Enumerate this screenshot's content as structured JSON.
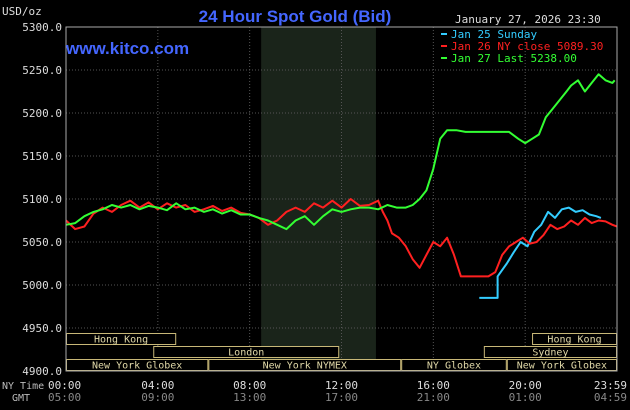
{
  "chart_data": {
    "type": "line",
    "title": "24 Hour Spot Gold (Bid)",
    "unit_label": "USD/oz",
    "website": "www.kitco.com",
    "timestamp": "January 27, 2026 23:30",
    "legend": [
      {
        "label": "Jan 25 Sunday",
        "color": "#33ccff"
      },
      {
        "label": "Jan 26 NY close 5089.30",
        "color": "#ff2020"
      },
      {
        "label": "Jan 27 Last 5238.00",
        "color": "#33ff33"
      }
    ],
    "ylim": [
      4900,
      5300
    ],
    "y_ticks": [
      4900,
      4950,
      5000,
      5050,
      5100,
      5150,
      5200,
      5250,
      5300
    ],
    "y_tick_labels": [
      "4900.0",
      "4950.0",
      "5000.0",
      "5050.0",
      "5100.0",
      "5150.0",
      "5200.0",
      "5250.0",
      "5300.0"
    ],
    "x_domain_hours": [
      0,
      24
    ],
    "x_tick_hours": [
      0,
      4,
      8,
      12,
      16,
      20,
      24
    ],
    "ny_time_label": "NY Time",
    "gmt_label": "GMT",
    "ny_tick_labels": [
      "00:00",
      "04:00",
      "08:00",
      "12:00",
      "16:00",
      "20:00",
      "23:59"
    ],
    "gmt_tick_labels": [
      "05:00",
      "09:00",
      "13:00",
      "17:00",
      "21:00",
      "01:00",
      "04:59"
    ],
    "shaded_hours": [
      8.5,
      13.5
    ],
    "sessions": [
      {
        "label": "Hong Kong",
        "start": 0,
        "end": 4.8,
        "row": 0
      },
      {
        "label": "Hong Kong",
        "start": 20.3,
        "end": 24,
        "row": 0
      },
      {
        "label": "London",
        "start": 3.8,
        "end": 11.9,
        "row": 1
      },
      {
        "label": "Sydney",
        "start": 18.2,
        "end": 24,
        "row": 1
      },
      {
        "label": "New York Globex",
        "start": 0,
        "end": 6.2,
        "row": 2
      },
      {
        "label": "New York NYMEX",
        "start": 6.2,
        "end": 14.6,
        "row": 2
      },
      {
        "label": "NY Globex",
        "start": 14.6,
        "end": 19.2,
        "row": 2
      },
      {
        "label": "New York Globex",
        "start": 19.2,
        "end": 24,
        "row": 2
      }
    ],
    "series": [
      {
        "name": "Jan 25 Sunday",
        "color": "#33ccff",
        "x": [
          18.0,
          18.8,
          18.8,
          19.2,
          19.5,
          19.8,
          20.1,
          20.4,
          20.7,
          21.0,
          21.3,
          21.6,
          21.9,
          22.2,
          22.5,
          22.8,
          23.1,
          23.3
        ],
        "y": [
          4985,
          4985,
          5010,
          5025,
          5038,
          5050,
          5045,
          5062,
          5070,
          5085,
          5078,
          5088,
          5090,
          5085,
          5087,
          5082,
          5080,
          5078
        ]
      },
      {
        "name": "Jan 26 NY close 5089.30",
        "color": "#ff2020",
        "x": [
          0.0,
          0.4,
          0.8,
          1.2,
          1.6,
          2.0,
          2.4,
          2.8,
          3.2,
          3.6,
          4.0,
          4.4,
          4.8,
          5.2,
          5.6,
          6.0,
          6.4,
          6.8,
          7.2,
          7.6,
          8.0,
          8.4,
          8.8,
          9.2,
          9.6,
          10.0,
          10.4,
          10.8,
          11.2,
          11.6,
          12.0,
          12.4,
          12.8,
          13.2,
          13.6,
          13.8,
          14.0,
          14.2,
          14.5,
          14.8,
          15.1,
          15.4,
          15.7,
          16.0,
          16.3,
          16.6,
          16.9,
          17.2,
          17.5,
          17.8,
          18.1,
          18.4,
          18.7,
          19.0,
          19.3,
          19.6,
          19.9,
          20.2,
          20.5,
          20.8,
          21.1,
          21.4,
          21.7,
          22.0,
          22.3,
          22.6,
          22.9,
          23.2,
          23.5,
          23.8,
          24.0
        ],
        "y": [
          5075,
          5065,
          5068,
          5083,
          5090,
          5085,
          5093,
          5098,
          5090,
          5096,
          5088,
          5095,
          5090,
          5093,
          5085,
          5088,
          5092,
          5086,
          5090,
          5084,
          5082,
          5078,
          5070,
          5075,
          5085,
          5090,
          5085,
          5095,
          5090,
          5098,
          5090,
          5100,
          5092,
          5093,
          5098,
          5085,
          5075,
          5060,
          5055,
          5045,
          5030,
          5020,
          5035,
          5050,
          5045,
          5055,
          5035,
          5010,
          5010,
          5010,
          5010,
          5010,
          5015,
          5035,
          5045,
          5050,
          5055,
          5048,
          5050,
          5058,
          5070,
          5065,
          5068,
          5075,
          5070,
          5078,
          5072,
          5075,
          5074,
          5070,
          5068
        ]
      },
      {
        "name": "Jan 27 Last 5238.00",
        "color": "#33ff33",
        "x": [
          0.0,
          0.4,
          0.8,
          1.2,
          1.6,
          2.0,
          2.4,
          2.8,
          3.2,
          3.6,
          4.0,
          4.4,
          4.8,
          5.2,
          5.6,
          6.0,
          6.4,
          6.8,
          7.2,
          7.6,
          8.0,
          8.4,
          8.8,
          9.2,
          9.6,
          10.0,
          10.4,
          10.8,
          11.2,
          11.6,
          12.0,
          12.4,
          12.8,
          13.2,
          13.6,
          14.0,
          14.4,
          14.8,
          15.1,
          15.4,
          15.7,
          16.0,
          16.3,
          16.6,
          17.0,
          17.4,
          17.8,
          18.2,
          18.6,
          18.9,
          19.3,
          19.7,
          20.0,
          20.3,
          20.6,
          20.9,
          21.2,
          21.5,
          21.8,
          22.0,
          22.3,
          22.6,
          22.9,
          23.2,
          23.5,
          23.8,
          23.9
        ],
        "y": [
          5070,
          5072,
          5080,
          5085,
          5088,
          5093,
          5090,
          5093,
          5088,
          5092,
          5090,
          5087,
          5095,
          5088,
          5090,
          5085,
          5088,
          5083,
          5087,
          5082,
          5082,
          5078,
          5075,
          5070,
          5065,
          5075,
          5080,
          5070,
          5080,
          5088,
          5085,
          5088,
          5090,
          5090,
          5088,
          5093,
          5090,
          5090,
          5093,
          5100,
          5110,
          5135,
          5170,
          5180,
          5180,
          5178,
          5178,
          5178,
          5178,
          5178,
          5178,
          5170,
          5165,
          5170,
          5175,
          5195,
          5205,
          5215,
          5225,
          5232,
          5238,
          5225,
          5235,
          5245,
          5238,
          5235,
          5238
        ]
      }
    ]
  }
}
